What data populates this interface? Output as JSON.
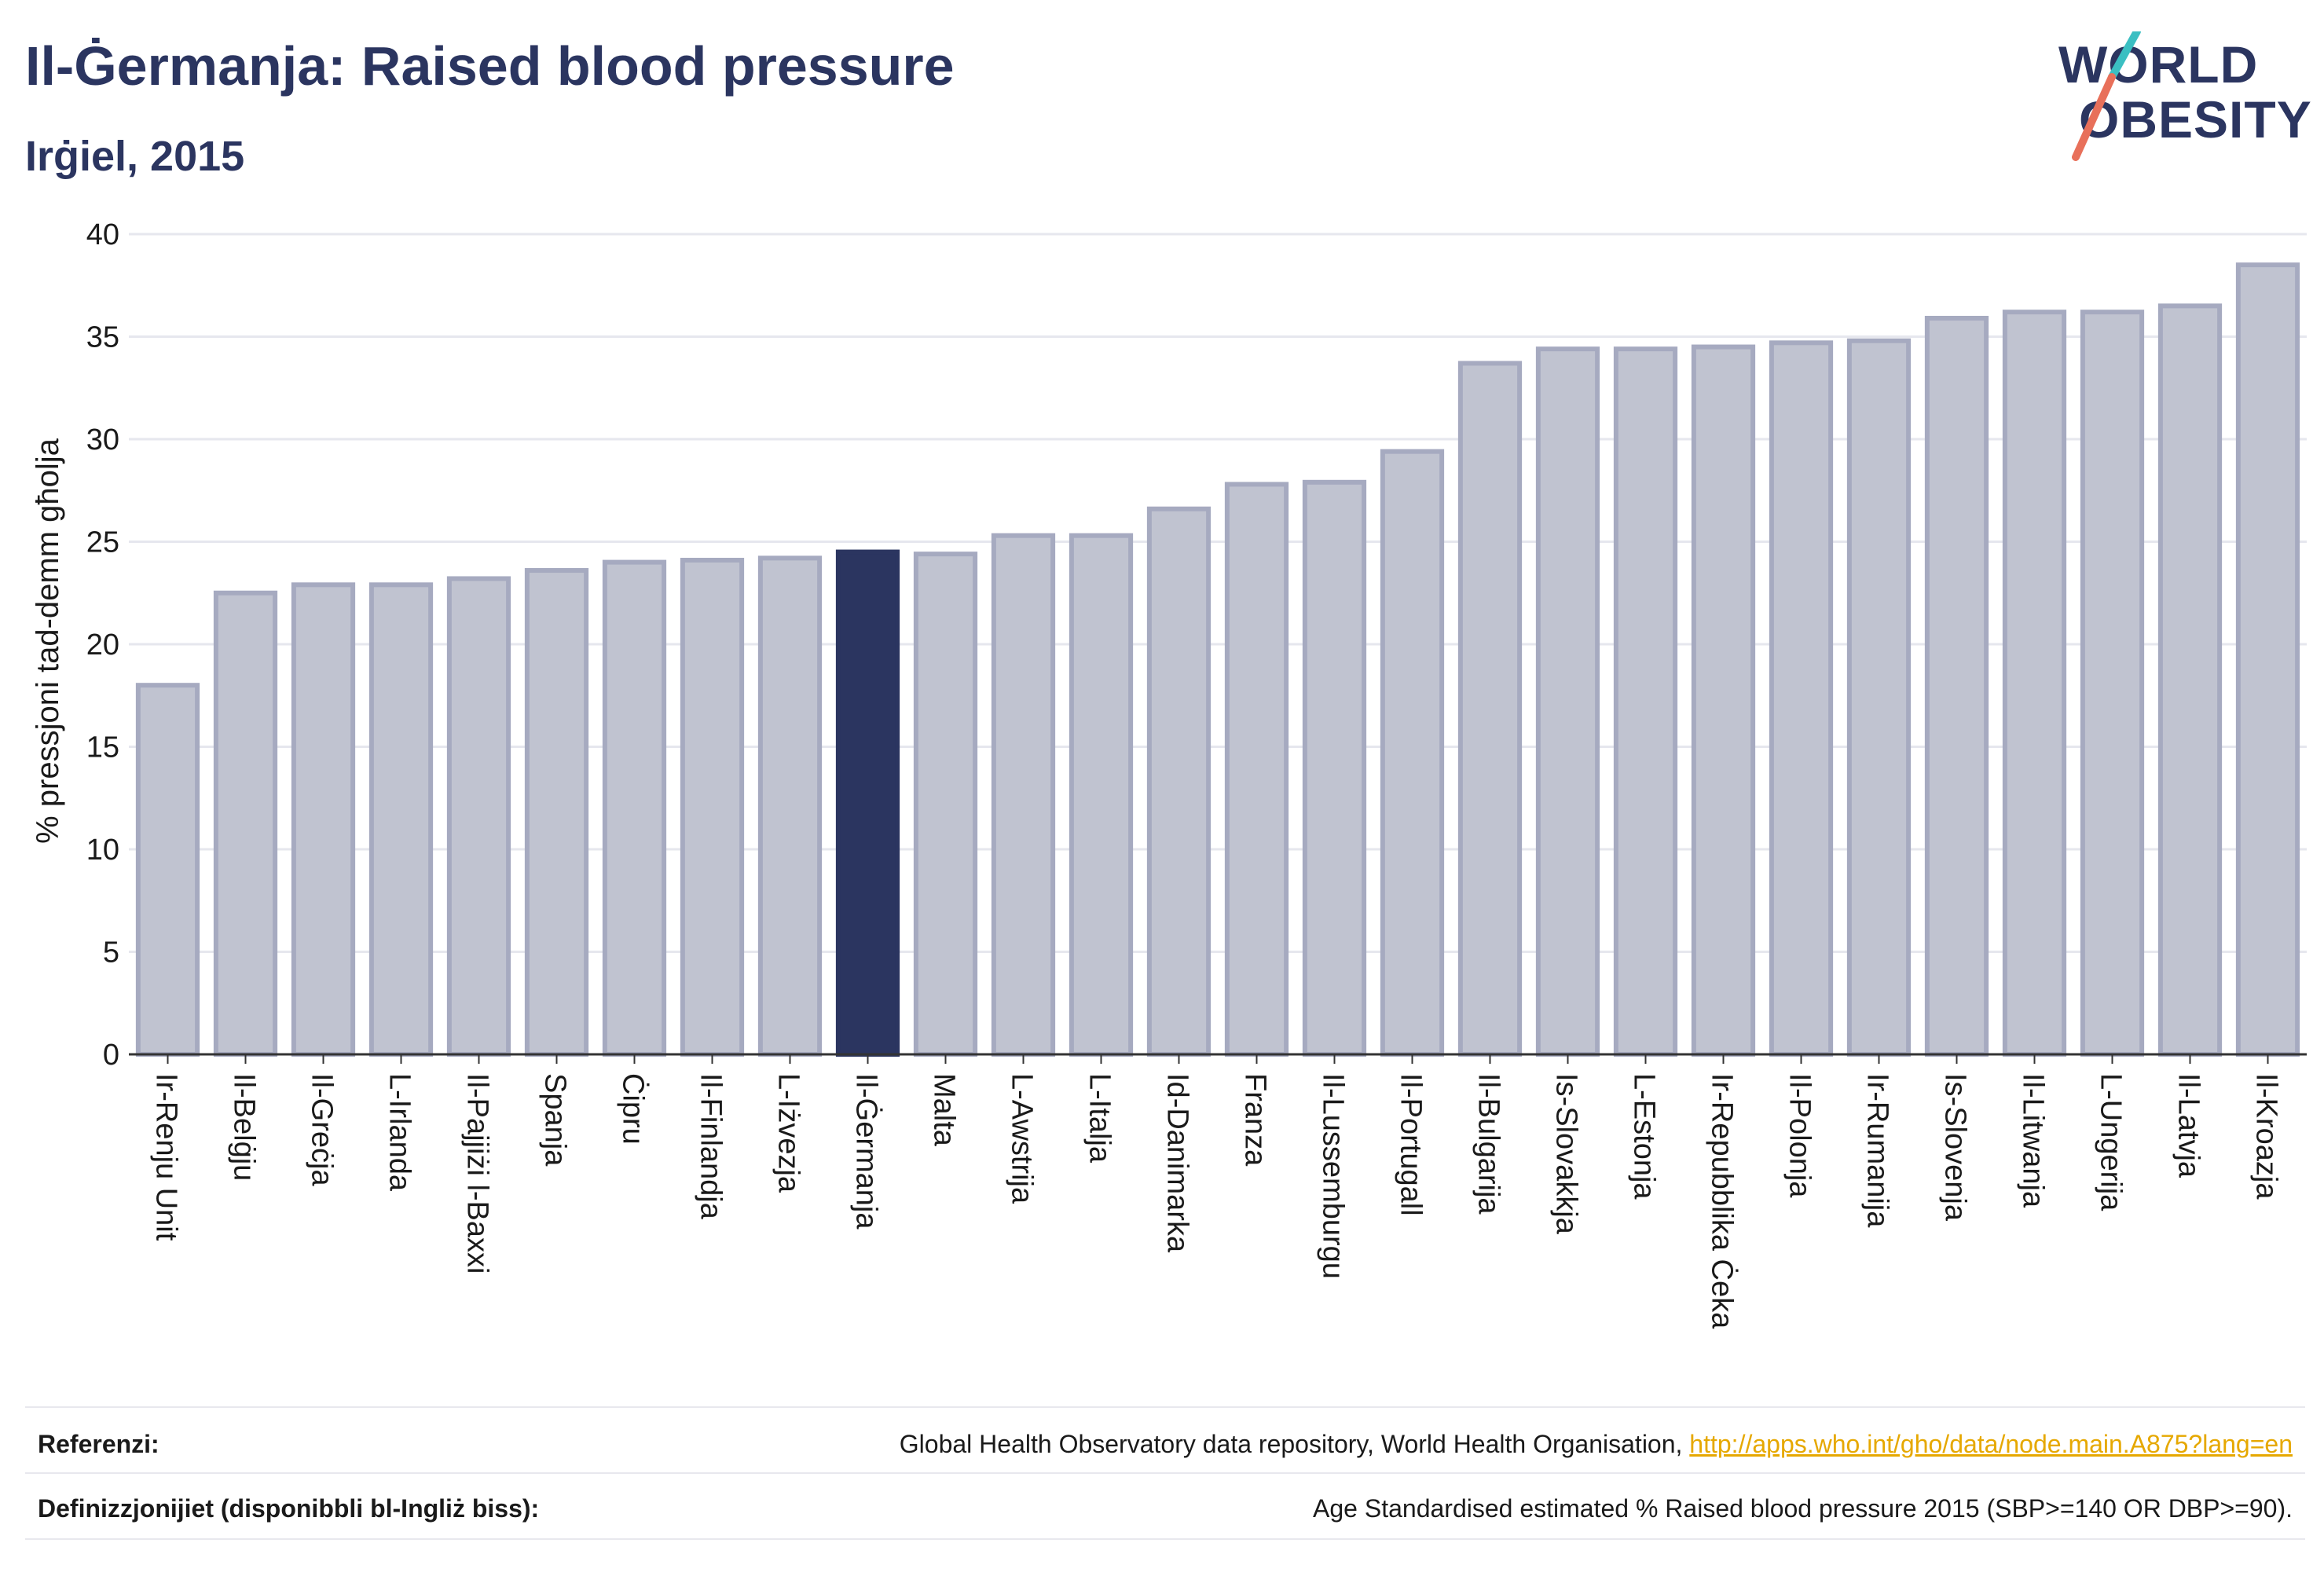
{
  "header": {
    "title": "Il-Ġermanja: Raised blood pressure",
    "subtitle": "Irġiel, 2015"
  },
  "logo": {
    "line1": "WORLD",
    "line2": "OBESITY",
    "colors": {
      "text": "#2b3560",
      "slash_top": "#3bbfc2",
      "slash_bottom": "#e8705a"
    }
  },
  "colors": {
    "bar_default": "#c0c3d0",
    "bar_default_border": "#a6aac0",
    "bar_highlight": "#2b3560",
    "grid": "#e6e7ee",
    "axis": "#333333"
  },
  "chart_data": {
    "type": "bar",
    "title": "Il-Ġermanja: Raised blood pressure",
    "subtitle": "Irġiel, 2015",
    "ylabel": "% pressjoni tad-demm għolja",
    "xlabel": "",
    "ylim": [
      0,
      40
    ],
    "yticks": [
      0,
      5,
      10,
      15,
      20,
      25,
      30,
      35,
      40
    ],
    "grid": true,
    "highlight": "Il-Ġermanja",
    "categories": [
      "Ir-Renju Unit",
      "Il-Belġju",
      "Il-Greċja",
      "L-Irlanda",
      "Il-Pajjiżi l-Baxxi",
      "Spanja",
      "Ċipru",
      "Il-Finlandja",
      "L-Iżvezja",
      "Il-Ġermanja",
      "Malta",
      "L-Awstrija",
      "L-Italja",
      "Id-Danimarka",
      "Franza",
      "Il-Lussemburgu",
      "Il-Portugall",
      "Il-Bulgarija",
      "Is-Slovakkja",
      "L-Estonja",
      "Ir-Repubblika Ċeka",
      "Il-Polonja",
      "Ir-Rumanija",
      "Is-Slovenja",
      "Il-Litwanja",
      "L-Ungerija",
      "Il-Latvja",
      "Il-Kroazja"
    ],
    "values": [
      18.0,
      22.5,
      22.9,
      22.9,
      23.2,
      23.6,
      24.0,
      24.1,
      24.2,
      24.5,
      24.4,
      25.3,
      25.3,
      26.6,
      27.8,
      27.9,
      29.4,
      33.7,
      34.4,
      34.4,
      34.5,
      34.7,
      34.8,
      35.9,
      36.2,
      36.2,
      36.5,
      38.5
    ]
  },
  "footer": {
    "references_label": "Referenzi:",
    "references_text": "Global Health Observatory data repository, World Health Organisation, ",
    "references_link": "http://apps.who.int/gho/data/node.main.A875?lang=en",
    "definitions_label": "Definizzjonijiet (disponibbli bl-Ingliż biss):",
    "definitions_text": "Age Standardised estimated % Raised blood pressure 2015 (SBP>=140 OR DBP>=90)."
  }
}
